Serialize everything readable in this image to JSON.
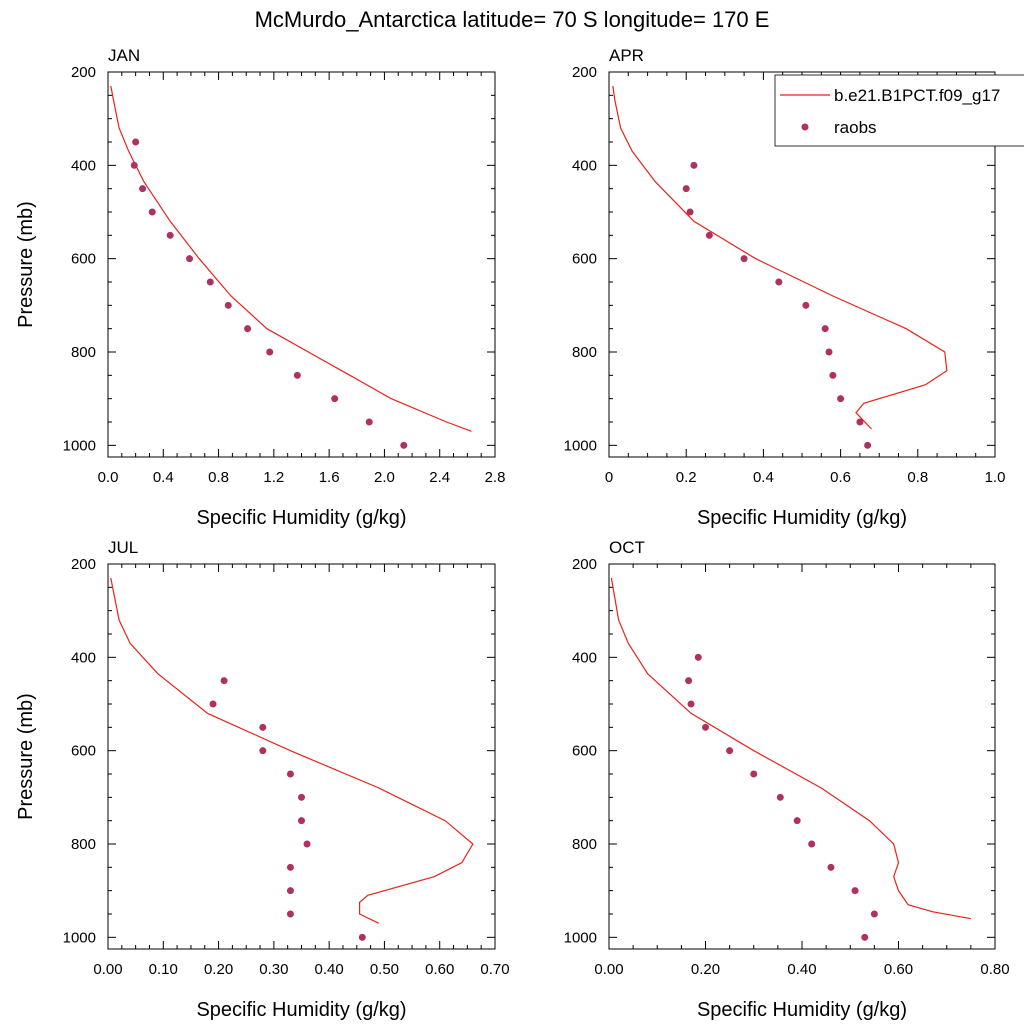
{
  "title": "McMurdo_Antarctica  latitude= 70 S longitude= 170 E",
  "legend": {
    "model_label": "b.e21.B1PCT.f09_g17",
    "obs_label": "raobs"
  },
  "colors": {
    "model": "#e8221c",
    "obs": "#b03060",
    "axis": "#000000"
  },
  "chart_data": [
    {
      "type": "line",
      "panel": "JAN",
      "xlabel": "Specific Humidity (g/kg)",
      "ylabel": "Pressure (mb)",
      "xlim": [
        0,
        2.8
      ],
      "ylim": [
        200,
        1025
      ],
      "xticks": [
        "0.0",
        "0.4",
        "0.8",
        "1.2",
        "1.6",
        "2.0",
        "2.4",
        "2.8"
      ],
      "yticks": [
        "200",
        "400",
        "600",
        "800",
        "1000"
      ],
      "model": {
        "p": [
          230,
          260,
          320,
          370,
          435,
          520,
          600,
          680,
          750,
          800,
          850,
          900,
          950,
          970
        ],
        "q": [
          0.02,
          0.04,
          0.08,
          0.15,
          0.26,
          0.45,
          0.66,
          0.89,
          1.15,
          1.45,
          1.75,
          2.05,
          2.45,
          2.63
        ]
      },
      "raobs": {
        "p": [
          350,
          400,
          450,
          500,
          550,
          600,
          650,
          700,
          750,
          800,
          850,
          900,
          950,
          1000
        ],
        "q": [
          0.2,
          0.19,
          0.25,
          0.32,
          0.45,
          0.59,
          0.74,
          0.87,
          1.01,
          1.17,
          1.37,
          1.64,
          1.89,
          2.14
        ]
      }
    },
    {
      "type": "line",
      "panel": "APR",
      "xlabel": "Specific Humidity (g/kg)",
      "ylabel": "",
      "xlim": [
        0,
        1.0
      ],
      "ylim": [
        200,
        1025
      ],
      "xticks": [
        "0",
        "0.2",
        "0.4",
        "0.6",
        "0.8",
        "1.0"
      ],
      "yticks": [
        "200",
        "400",
        "600",
        "800",
        "1000"
      ],
      "model": {
        "p": [
          230,
          260,
          320,
          370,
          435,
          520,
          600,
          680,
          750,
          800,
          840,
          870,
          910,
          930,
          965
        ],
        "q": [
          0.01,
          0.015,
          0.03,
          0.06,
          0.12,
          0.22,
          0.38,
          0.58,
          0.77,
          0.87,
          0.875,
          0.82,
          0.66,
          0.64,
          0.68
        ]
      },
      "raobs": {
        "p": [
          400,
          450,
          500,
          550,
          600,
          650,
          700,
          750,
          800,
          850,
          900,
          950,
          1000
        ],
        "q": [
          0.22,
          0.2,
          0.21,
          0.26,
          0.35,
          0.44,
          0.51,
          0.56,
          0.57,
          0.58,
          0.6,
          0.65,
          0.67
        ]
      }
    },
    {
      "type": "line",
      "panel": "JUL",
      "xlabel": "Specific Humidity (g/kg)",
      "ylabel": "Pressure (mb)",
      "xlim": [
        0,
        0.7
      ],
      "ylim": [
        200,
        1025
      ],
      "xticks": [
        "0.00",
        "0.10",
        "0.20",
        "0.30",
        "0.40",
        "0.50",
        "0.60",
        "0.70"
      ],
      "yticks": [
        "200",
        "400",
        "600",
        "800",
        "1000"
      ],
      "model": {
        "p": [
          230,
          260,
          320,
          370,
          435,
          520,
          600,
          680,
          750,
          800,
          840,
          870,
          910,
          925,
          950,
          970
        ],
        "q": [
          0.005,
          0.01,
          0.02,
          0.04,
          0.09,
          0.18,
          0.33,
          0.49,
          0.61,
          0.66,
          0.64,
          0.59,
          0.47,
          0.455,
          0.455,
          0.49
        ]
      },
      "raobs": {
        "p": [
          450,
          500,
          550,
          600,
          650,
          700,
          750,
          800,
          850,
          900,
          950,
          1000
        ],
        "q": [
          0.21,
          0.19,
          0.28,
          0.28,
          0.33,
          0.35,
          0.35,
          0.36,
          0.33,
          0.33,
          0.33,
          0.46
        ]
      }
    },
    {
      "type": "line",
      "panel": "OCT",
      "xlabel": "Specific Humidity (g/kg)",
      "ylabel": "",
      "xlim": [
        0,
        0.8
      ],
      "ylim": [
        200,
        1025
      ],
      "xticks": [
        "0.00",
        "0.20",
        "0.40",
        "0.60",
        "0.80"
      ],
      "yticks": [
        "200",
        "400",
        "600",
        "800",
        "1000"
      ],
      "model": {
        "p": [
          230,
          260,
          320,
          370,
          435,
          520,
          600,
          680,
          750,
          800,
          840,
          870,
          900,
          930,
          945,
          960
        ],
        "q": [
          0.005,
          0.01,
          0.02,
          0.04,
          0.08,
          0.17,
          0.3,
          0.44,
          0.54,
          0.59,
          0.6,
          0.59,
          0.6,
          0.62,
          0.67,
          0.75
        ]
      },
      "raobs": {
        "p": [
          400,
          450,
          500,
          550,
          600,
          650,
          700,
          750,
          800,
          850,
          900,
          950,
          1000
        ],
        "q": [
          0.185,
          0.165,
          0.17,
          0.2,
          0.25,
          0.3,
          0.355,
          0.39,
          0.42,
          0.46,
          0.51,
          0.55,
          0.53
        ]
      }
    }
  ]
}
